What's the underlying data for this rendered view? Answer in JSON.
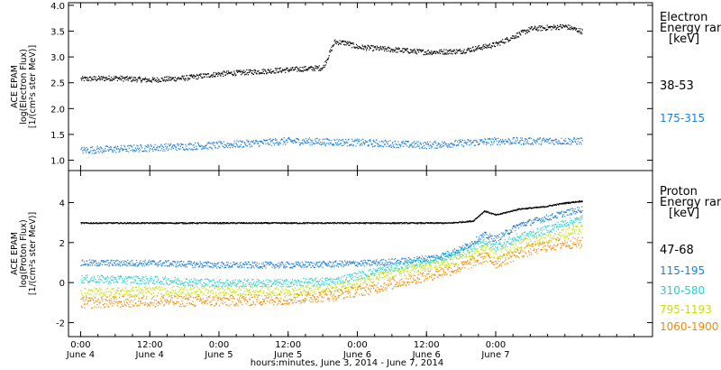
{
  "chart_data": [
    {
      "type": "scatter",
      "panel": "electron",
      "ylabel": [
        "ACE EPAM",
        "log(Electron Flux)",
        "[1/(cm²s ster MeV)]"
      ],
      "ylim": [
        0.8,
        4.05
      ],
      "yticks": [
        "1.0",
        "1.5",
        "2.0",
        "2.5",
        "3.0",
        "3.5",
        "4.0"
      ],
      "legend_title": [
        "Electron",
        "Energy range",
        "[keV]"
      ],
      "series": [
        {
          "name": "38-53",
          "color": "#000000",
          "x": [
            0,
            6,
            12,
            18,
            24,
            30,
            36,
            42,
            44,
            46,
            48,
            54,
            60,
            66,
            72,
            78,
            84,
            87
          ],
          "y": [
            2.58,
            2.6,
            2.56,
            2.6,
            2.68,
            2.72,
            2.76,
            2.8,
            3.3,
            3.28,
            3.2,
            3.15,
            3.1,
            3.12,
            3.25,
            3.55,
            3.6,
            3.5
          ]
        },
        {
          "name": "175-315",
          "color": "#1f7fd6",
          "x": [
            0,
            12,
            24,
            36,
            48,
            60,
            72,
            87
          ],
          "y": [
            1.2,
            1.25,
            1.3,
            1.38,
            1.35,
            1.3,
            1.38,
            1.38
          ]
        }
      ]
    },
    {
      "type": "scatter",
      "panel": "proton",
      "ylabel": [
        "ACE EPAM",
        "log(Proton Flux)",
        "[1/(cm²s ster MeV)]"
      ],
      "ylim": [
        -2.7,
        5.6
      ],
      "yticks": [
        "-2",
        "0",
        "2",
        "4"
      ],
      "legend_title": [
        "Proton",
        "Energy range",
        "[keV]"
      ],
      "series": [
        {
          "name": "47-68",
          "color": "#000000",
          "x": [
            0,
            12,
            24,
            36,
            48,
            60,
            64,
            68,
            70,
            72,
            76,
            80,
            84,
            87
          ],
          "y": [
            3.0,
            3.0,
            3.0,
            3.0,
            3.0,
            3.0,
            3.0,
            3.1,
            3.6,
            3.4,
            3.7,
            3.8,
            4.0,
            4.1
          ]
        },
        {
          "name": "115-195",
          "color": "#1f7fd6",
          "x": [
            0,
            12,
            24,
            36,
            44,
            50,
            56,
            62,
            66,
            70,
            72,
            76,
            80,
            84,
            87
          ],
          "y": [
            1.0,
            1.0,
            0.9,
            0.9,
            0.95,
            1.0,
            1.1,
            1.3,
            1.7,
            2.4,
            2.2,
            2.9,
            3.2,
            3.5,
            3.7
          ]
        },
        {
          "name": "310-580",
          "color": "#22d0d0",
          "x": [
            0,
            12,
            24,
            36,
            44,
            50,
            56,
            62,
            66,
            70,
            72,
            76,
            80,
            84,
            87
          ],
          "y": [
            0.2,
            0.15,
            0.0,
            0.0,
            0.1,
            0.5,
            0.9,
            1.2,
            1.5,
            2.1,
            1.8,
            2.3,
            2.6,
            3.0,
            3.2
          ]
        },
        {
          "name": "795-1193",
          "color": "#c8e000",
          "x": [
            0,
            12,
            24,
            36,
            44,
            50,
            56,
            62,
            66,
            70,
            72,
            76,
            80,
            84,
            87
          ],
          "y": [
            -0.5,
            -0.4,
            -0.4,
            -0.4,
            -0.3,
            0.2,
            0.6,
            0.9,
            1.2,
            1.7,
            1.4,
            1.9,
            2.2,
            2.5,
            2.7
          ]
        },
        {
          "name": "1060-1900",
          "color": "#f08a00",
          "x": [
            0,
            12,
            24,
            36,
            44,
            50,
            56,
            62,
            66,
            70,
            72,
            76,
            80,
            84,
            87
          ],
          "y": [
            -1.0,
            -0.9,
            -0.9,
            -0.8,
            -0.6,
            -0.3,
            0.1,
            0.5,
            0.8,
            1.3,
            1.0,
            1.5,
            1.8,
            2.0,
            2.0
          ]
        }
      ]
    }
  ],
  "x_axis": {
    "label": "hours:minutes, June  3, 2014 - June  7, 2014",
    "ticks": [
      {
        "t": 0,
        "time": "0:00",
        "date": "June 4"
      },
      {
        "t": 12,
        "time": "12:00",
        "date": "June 4"
      },
      {
        "t": 24,
        "time": "0:00",
        "date": "June 5"
      },
      {
        "t": 36,
        "time": "12:00",
        "date": "June 5"
      },
      {
        "t": 48,
        "time": "0:00",
        "date": "June 6"
      },
      {
        "t": 60,
        "time": "12:00",
        "date": "June 6"
      },
      {
        "t": 72,
        "time": "0:00",
        "date": "June 7"
      }
    ],
    "range_hours": [
      -2.1,
      99.2
    ]
  }
}
